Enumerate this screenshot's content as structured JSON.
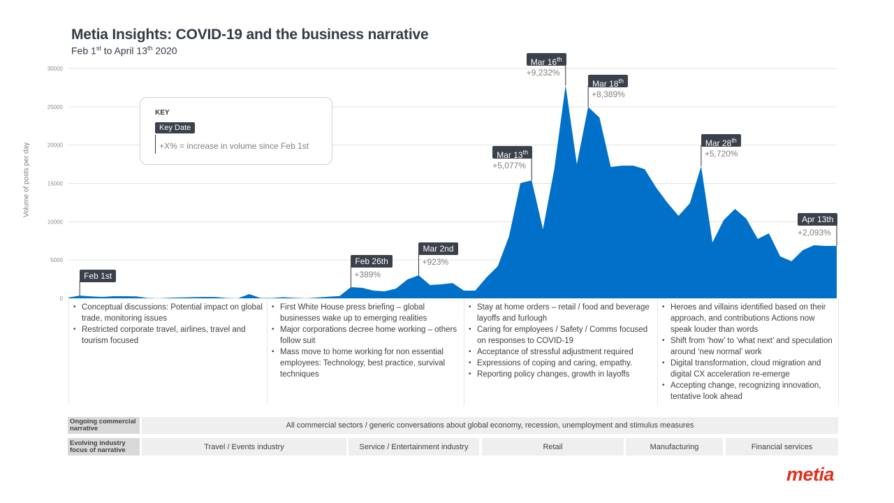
{
  "header": {
    "title": "Metia Insights: COVID-19 and the business narrative",
    "subtitle": {
      "p1": "Feb 1",
      "s1": "st",
      "p2": " to April 13",
      "s2": "th",
      "p3": " 2020"
    }
  },
  "key": {
    "title": "KEY",
    "sample_label": "Key Date",
    "explanation": "+X% = increase in volume since Feb 1st"
  },
  "chart_data": {
    "type": "area",
    "title": "",
    "ylabel": "Volume of posts per day",
    "xlabel": "",
    "ylim": [
      0,
      30000
    ],
    "yticks": [
      "0",
      "5000",
      "10000",
      "15000",
      "20000",
      "25000",
      "30000"
    ],
    "grid": true,
    "color": "#0070c9",
    "x_range": [
      "Feb 1",
      "Apr 13"
    ],
    "values": [
      100,
      360,
      250,
      180,
      270,
      270,
      250,
      50,
      0,
      80,
      120,
      150,
      180,
      170,
      50,
      0,
      550,
      50,
      50,
      150,
      60,
      0,
      100,
      200,
      300,
      1460,
      1370,
      1000,
      910,
      1280,
      2460,
      3010,
      1730,
      1820,
      2000,
      1000,
      1000,
      2730,
      4190,
      8110,
      15040,
      15400,
      9020,
      16860,
      27800,
      17500,
      24980,
      23600,
      17140,
      17320,
      17320,
      16860,
      14490,
      12490,
      10760,
      12400,
      17230,
      7290,
      10210,
      11670,
      10390,
      7750,
      8480,
      5470,
      4830,
      6290,
      6930,
      6840,
      6840
    ],
    "annotations": [
      {
        "point": 1,
        "label": "Feb 1st",
        "sup": "",
        "change": ""
      },
      {
        "point": 25,
        "label": "Feb 26th",
        "sup": "",
        "change": "+389%"
      },
      {
        "point": 31,
        "label": "Mar 2nd",
        "sup": "",
        "change": "+923%"
      },
      {
        "point": 41,
        "label": "Mar 13",
        "sup": "th",
        "change": "+5,077%"
      },
      {
        "point": 44,
        "label": "Mar 16",
        "sup": "th",
        "change": "+9,232%"
      },
      {
        "point": 46,
        "label": "Mar 18",
        "sup": "th",
        "change": "+8,389%"
      },
      {
        "point": 56,
        "label": "Mar 28",
        "sup": "th",
        "change": "+5,720%"
      },
      {
        "point": 68,
        "label": "Apr 13th",
        "sup": "",
        "change": "+2,093%"
      }
    ]
  },
  "phases": [
    {
      "bullets": [
        "Conceptual discussions: Potential impact on global trade, monitoring issues",
        "Restricted corporate travel, airlines, travel and tourism focused"
      ]
    },
    {
      "bullets": [
        "First White House press briefing – global businesses wake up to emerging realities",
        "Major corporations decree home working – others follow suit",
        "Mass move to home working for non essential employees: Technology, best practice, survival techniques"
      ]
    },
    {
      "bullets": [
        "Stay at home orders – retail / food and beverage layoffs and furlough",
        "Caring for employees  / Safety / Comms focused on responses to COVID-19",
        "Acceptance of stressful adjustment required",
        "Expressions of coping and caring, empathy.",
        "Reporting policy changes, growth in layoffs"
      ]
    },
    {
      "bullets": [
        "Heroes and villains identified based on their approach, and contributions Actions now speak louder than words",
        "Shift from ‘how’ to ‘what next’ and speculation around ‘new normal’ work",
        "Digital transformation, cloud migration and digital CX acceleration re-emerge",
        "Accepting change, recognizing innovation, tentative look ahead"
      ]
    }
  ],
  "table": {
    "ongoing_label": "Ongoing commercial narrative",
    "ongoing_value": "All commercial sectors / generic conversations about global economy, recession, unemployment and stimulus measures",
    "evolving_label": "Evolving industry focus of narrative",
    "evolving_values": [
      "Travel / Events industry",
      "Service / Entertainment industry",
      "Retail",
      "Manufacturing",
      "Financial services"
    ]
  },
  "logo": "metia"
}
